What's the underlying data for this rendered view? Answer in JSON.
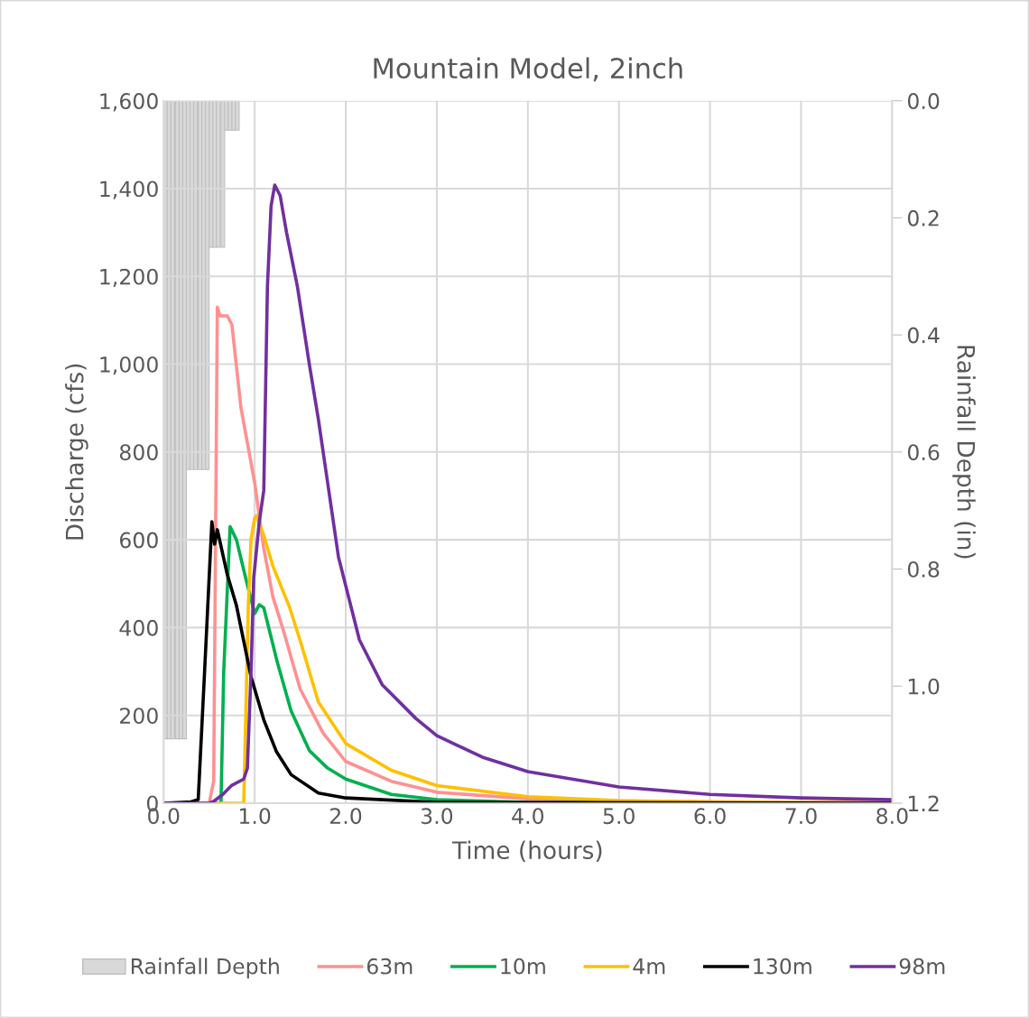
{
  "chart_data": {
    "type": "line",
    "title": "Mountain Model, 2inch",
    "xlabel": "Time (hours)",
    "ylabel": "Discharge (cfs)",
    "y2label": "Rainfall Depth (in)",
    "xlim": [
      0,
      8
    ],
    "xticks": [
      {
        "value": 0,
        "label": "0.0"
      },
      {
        "value": 1,
        "label": "1.0"
      },
      {
        "value": 2,
        "label": "2.0"
      },
      {
        "value": 3,
        "label": "3.0"
      },
      {
        "value": 4,
        "label": "4.0"
      },
      {
        "value": 5,
        "label": "5.0"
      },
      {
        "value": 6,
        "label": "6.0"
      },
      {
        "value": 7,
        "label": "7.0"
      },
      {
        "value": 8,
        "label": "8.0"
      }
    ],
    "ylim": [
      0,
      1600
    ],
    "yticks": [
      0,
      200,
      400,
      600,
      800,
      {
        "value": 1000,
        "label": "1,000"
      },
      {
        "value": 1200,
        "label": "1,200"
      },
      {
        "value": 1400,
        "label": "1,400"
      },
      {
        "value": 1600,
        "label": "1,600"
      }
    ],
    "y2lim": [
      1.2,
      0.0
    ],
    "y2ticks": [
      {
        "value": 0,
        "label": "0.0"
      },
      {
        "value": 0.2,
        "label": "0.2"
      },
      {
        "value": 0.4,
        "label": "0.4"
      },
      {
        "value": 0.6,
        "label": "0.6"
      },
      {
        "value": 0.8,
        "label": "0.8"
      },
      {
        "value": 1.0,
        "label": "1.0"
      },
      {
        "value": 1.2,
        "label": "1.2"
      }
    ],
    "grid": true,
    "legend": "bottom",
    "marker": "none",
    "line_style": "solid",
    "series": [
      {
        "name": "Rainfall Depth",
        "type": "bar",
        "axis": "y2",
        "color": "#d9d9d9",
        "x": [
          0.02,
          0.06,
          0.1,
          0.15,
          0.19,
          0.23,
          0.27,
          0.31,
          0.35,
          0.4,
          0.44,
          0.48,
          0.52,
          0.56,
          0.6,
          0.65,
          0.69,
          0.73,
          0.77,
          0.81
        ],
        "values": [
          1.09,
          1.09,
          1.09,
          1.09,
          1.09,
          1.09,
          0.63,
          0.63,
          0.63,
          0.63,
          0.63,
          0.63,
          0.25,
          0.25,
          0.25,
          0.25,
          0.05,
          0.05,
          0.05,
          0.05
        ]
      },
      {
        "name": "63m",
        "color": "#ff9191",
        "x": [
          0,
          0.5,
          0.55,
          0.59,
          0.62,
          0.7,
          0.75,
          0.85,
          1.0,
          1.1,
          1.2,
          1.31,
          1.5,
          1.75,
          2.0,
          2.5,
          3.0,
          4.0,
          5.0,
          6.0,
          8.0
        ],
        "values": [
          0,
          0,
          50,
          1130,
          1110,
          1110,
          1090,
          900,
          730,
          580,
          470,
          397,
          260,
          160,
          95,
          50,
          25,
          10,
          5,
          3,
          2
        ]
      },
      {
        "name": "10m",
        "color": "#00b050",
        "x": [
          0,
          0.63,
          0.66,
          0.73,
          0.8,
          0.9,
          1.0,
          1.05,
          1.1,
          1.25,
          1.4,
          1.6,
          1.8,
          2.0,
          2.5,
          3.0,
          4.0,
          8.0
        ],
        "values": [
          0,
          0,
          300,
          630,
          600,
          514,
          432,
          452,
          445,
          320,
          210,
          120,
          80,
          55,
          20,
          8,
          2,
          0
        ]
      },
      {
        "name": "4m",
        "color": "#ffc000",
        "x": [
          0,
          0.85,
          0.88,
          0.93,
          0.96,
          1.0,
          1.02,
          1.1,
          1.2,
          1.38,
          1.5,
          1.7,
          2.0,
          2.5,
          3.0,
          4.0,
          5.0,
          6.0,
          8.0
        ],
        "values": [
          0,
          0,
          0,
          450,
          600,
          650,
          655,
          610,
          540,
          448,
          370,
          230,
          136,
          75,
          40,
          15,
          6,
          3,
          1
        ]
      },
      {
        "name": "130m",
        "color": "#000000",
        "x": [
          0,
          0.3,
          0.38,
          0.45,
          0.53,
          0.56,
          0.59,
          0.7,
          0.8,
          0.96,
          1.1,
          1.24,
          1.4,
          1.7,
          2.0,
          3.0,
          8.0
        ],
        "values": [
          0,
          3,
          8,
          300,
          641,
          590,
          623,
          520,
          450,
          288,
          190,
          117,
          65,
          23,
          12,
          2,
          0
        ]
      },
      {
        "name": "98m",
        "color": "#7030a0",
        "x": [
          0,
          0.5,
          0.55,
          0.65,
          0.75,
          0.88,
          0.92,
          0.96,
          0.99,
          1.05,
          1.1,
          1.14,
          1.18,
          1.22,
          1.28,
          1.35,
          1.47,
          1.6,
          1.7,
          1.92,
          2.15,
          2.4,
          2.77,
          3.0,
          3.5,
          4.0,
          5.0,
          6.0,
          7.0,
          8.0
        ],
        "values": [
          0,
          0,
          4,
          20,
          41,
          55,
          80,
          300,
          514,
          640,
          713,
          1176,
          1360,
          1408,
          1384,
          1300,
          1176,
          1000,
          874,
          561,
          372,
          270,
          193,
          154,
          105,
          72,
          37,
          20,
          12,
          8
        ]
      }
    ]
  }
}
